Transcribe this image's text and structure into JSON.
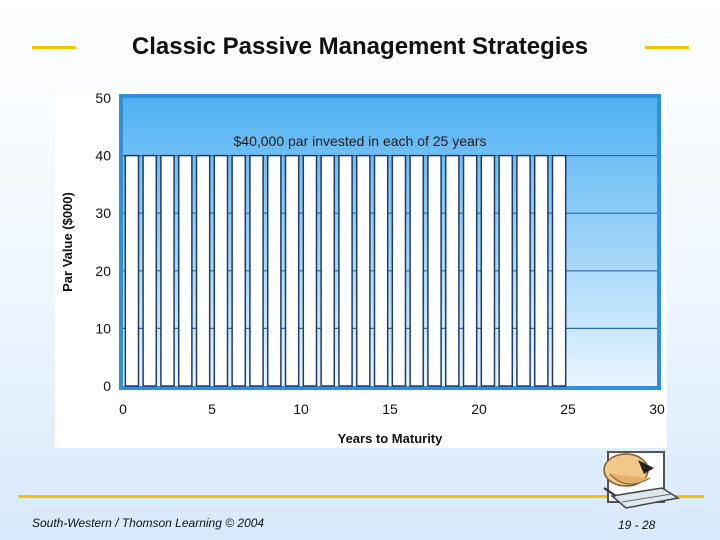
{
  "slide": {
    "title": "Classic Passive Management Strategies",
    "footer_left": "South-Western / Thomson Learning © 2004",
    "footer_right": "19 - 28"
  },
  "colors": {
    "accent": "#f5c400",
    "plot_top": "#4fb1f2",
    "plot_bottom": "#e9f5ff",
    "bar_stroke": "#1f3c66",
    "bar_fill": "#ffffff"
  },
  "chart_data": {
    "type": "bar",
    "annotation": "$40,000 par invested in each of 25 years",
    "xlabel": "Years to Maturity",
    "ylabel": "Par Value ($000)",
    "xlim": [
      0,
      30
    ],
    "ylim": [
      0,
      50
    ],
    "x_ticks": [
      0,
      5,
      10,
      15,
      20,
      25,
      30
    ],
    "y_ticks": [
      0,
      10,
      20,
      30,
      40,
      50
    ],
    "grid": true,
    "categories": [
      1,
      2,
      3,
      4,
      5,
      6,
      7,
      8,
      9,
      10,
      11,
      12,
      13,
      14,
      15,
      16,
      17,
      18,
      19,
      20,
      21,
      22,
      23,
      24,
      25
    ],
    "values": [
      40,
      40,
      40,
      40,
      40,
      40,
      40,
      40,
      40,
      40,
      40,
      40,
      40,
      40,
      40,
      40,
      40,
      40,
      40,
      40,
      40,
      40,
      40,
      40,
      40
    ]
  }
}
